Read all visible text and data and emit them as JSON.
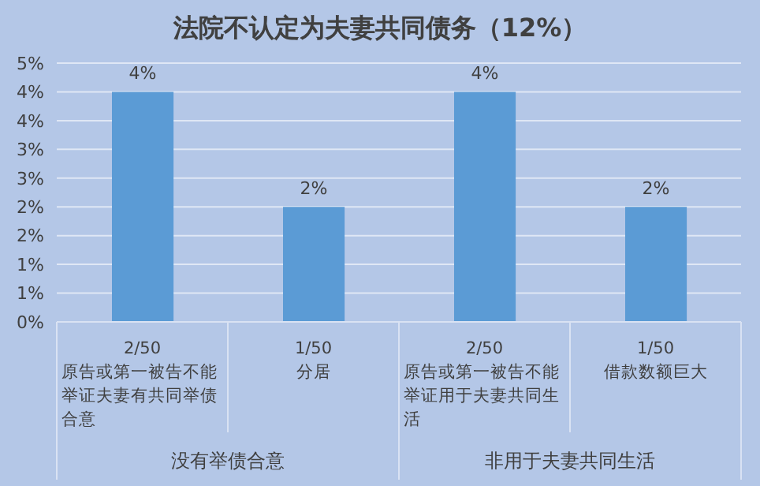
{
  "chart_data": {
    "type": "bar",
    "title": "法院不认定为夫妻共同债务（12%）",
    "categories": [
      "2/50\n原告或第一被告不能举证夫妻有共同举债合意",
      "1/50\n分居",
      "2/50\n原告或第一被告不能举证用于夫妻共同生活",
      "1/50\n借款数额巨大"
    ],
    "values": [
      4,
      2,
      4,
      2
    ],
    "color": "#5b9bd5",
    "value_labels": [
      "4%",
      "2%",
      "4%",
      "2%"
    ],
    "annotations": [
      "没有举债合意",
      "非用于夫妻共同生活"
    ],
    "ylim": [
      0,
      4.5
    ],
    "yticks": [
      {
        "value": 0,
        "label": "0%"
      },
      {
        "value": 0.5,
        "label": "1%"
      },
      {
        "value": 1,
        "label": "1%"
      },
      {
        "value": 1.5,
        "label": "2%"
      },
      {
        "value": 2,
        "label": "2%"
      },
      {
        "value": 2.5,
        "label": "3%"
      },
      {
        "value": 3,
        "label": "3%"
      },
      {
        "value": 3.5,
        "label": "4%"
      },
      {
        "value": 4,
        "label": "4%"
      },
      {
        "value": 4.5,
        "label": "5%"
      }
    ],
    "grid": "y"
  }
}
